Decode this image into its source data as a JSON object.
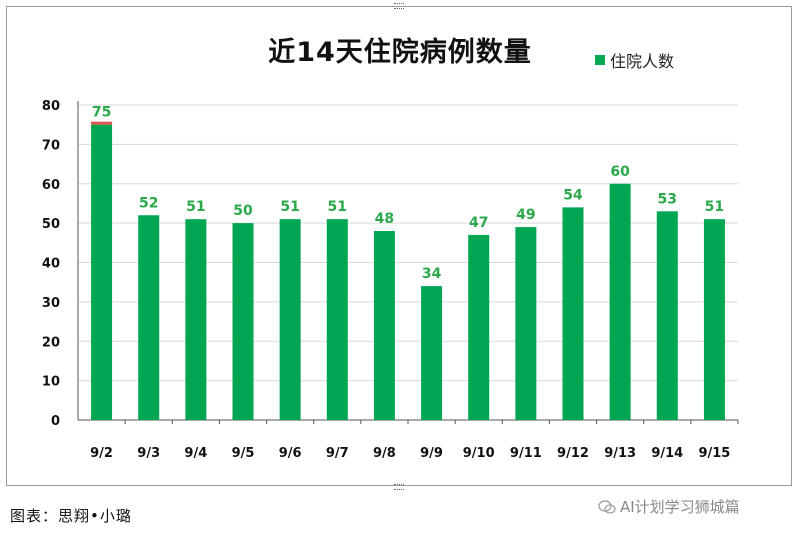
{
  "chart_data": {
    "type": "bar",
    "title": "近14天住院病例数量",
    "categories": [
      "9/2",
      "9/3",
      "9/4",
      "9/5",
      "9/6",
      "9/7",
      "9/8",
      "9/9",
      "9/10",
      "9/11",
      "9/12",
      "9/13",
      "9/14",
      "9/15"
    ],
    "series": [
      {
        "name": "住院人数",
        "values": [
          75,
          52,
          51,
          50,
          51,
          51,
          48,
          34,
          47,
          49,
          54,
          60,
          53,
          51
        ],
        "color": "#00a651"
      }
    ],
    "yticks": [
      0,
      10,
      20,
      30,
      40,
      50,
      60,
      70,
      80
    ],
    "ylim": [
      0,
      80
    ],
    "grid": true,
    "legend_position": "top-right",
    "label_color": "#2ba84a",
    "accent_color": "#d9534f"
  },
  "caption": "图表：思翔•小璐",
  "watermark": "AI计划学习狮城篇"
}
